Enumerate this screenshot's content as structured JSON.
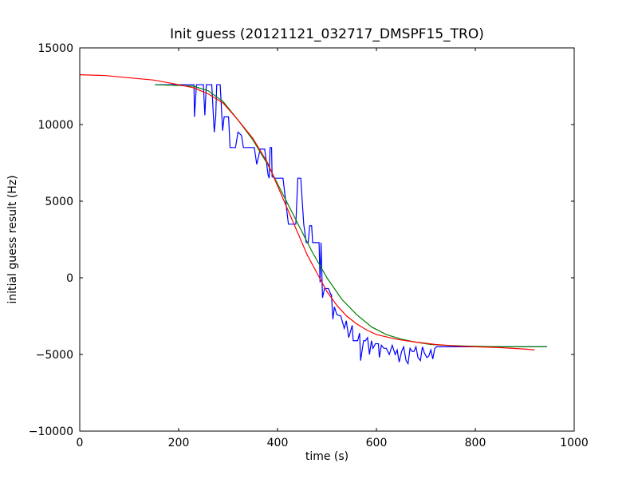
{
  "chart_data": {
    "type": "line",
    "title": "Init guess (20121121_032717_DMSPF15_TRO)",
    "xlabel": "time (s)",
    "ylabel": "initial guess result (Hz)",
    "xlim": [
      0,
      1000
    ],
    "ylim": [
      -10000,
      15000
    ],
    "xticks": [
      0,
      200,
      400,
      600,
      800,
      1000
    ],
    "yticks": [
      -10000,
      -5000,
      0,
      5000,
      10000,
      15000
    ],
    "xtick_labels": [
      "0",
      "200",
      "400",
      "600",
      "800",
      "1000"
    ],
    "ytick_labels": [
      "−10000",
      "−5000",
      "0",
      "5000",
      "10000",
      "15000"
    ],
    "grid": false,
    "series": [
      {
        "color": "#0000ff",
        "x": [
          152,
          175,
          198,
          222,
          231,
          232,
          236,
          239,
          247,
          250,
          253,
          256,
          258,
          262,
          267,
          272,
          275,
          277,
          281,
          284,
          289,
          292,
          294,
          297,
          301,
          304,
          312,
          315,
          320,
          327,
          331,
          334,
          337,
          343,
          353,
          358,
          365,
          374,
          381,
          383,
          385,
          388,
          389,
          395,
          405,
          408,
          411,
          422,
          434,
          437,
          441,
          447,
          453,
          458,
          462,
          465,
          469,
          471,
          475,
          480,
          484,
          486,
          488,
          491,
          495,
          503,
          508,
          509,
          512,
          515,
          520,
          528,
          535,
          539,
          544,
          551,
          553,
          562,
          566,
          568,
          574,
          578,
          582,
          586,
          590,
          593,
          598,
          604,
          606,
          610,
          615,
          620,
          626,
          632,
          638,
          642,
          646,
          651,
          655,
          660,
          664,
          668,
          672,
          676,
          680,
          684,
          689,
          693,
          697,
          702,
          706,
          710,
          714,
          718,
          722,
          730,
          760,
          800,
          850,
          900,
          945
        ],
        "y": [
          12600,
          12600,
          12600,
          12600,
          12600,
          10500,
          12600,
          12600,
          12600,
          12600,
          10600,
          12600,
          12600,
          12600,
          12600,
          9500,
          10500,
          12600,
          12600,
          12600,
          9600,
          10500,
          10500,
          10500,
          10500,
          8500,
          8500,
          8500,
          9500,
          9300,
          8500,
          8500,
          8500,
          8500,
          8500,
          7400,
          8400,
          8400,
          6700,
          6500,
          8500,
          8500,
          6600,
          6500,
          6500,
          6500,
          6500,
          3500,
          3500,
          3500,
          6500,
          6500,
          3500,
          2300,
          2300,
          3400,
          3400,
          2300,
          2300,
          2300,
          2300,
          -300,
          2300,
          -1300,
          -700,
          -700,
          -1100,
          -1100,
          -2700,
          -1900,
          -2400,
          -2500,
          -3300,
          -2800,
          -3900,
          -3100,
          -4100,
          -4100,
          -3600,
          -5400,
          -4100,
          -4100,
          -3900,
          -5000,
          -4100,
          -4600,
          -4300,
          -4300,
          -5200,
          -4400,
          -4600,
          -4600,
          -5000,
          -4400,
          -5000,
          -4700,
          -5500,
          -4800,
          -4500,
          -5400,
          -5600,
          -4600,
          -4800,
          -4800,
          -4500,
          -5200,
          -5400,
          -4500,
          -4900,
          -5200,
          -5100,
          -4700,
          -5300,
          -4600,
          -4500,
          -4500,
          -4500,
          -4500,
          -4500,
          -4500,
          -4500
        ]
      },
      {
        "color": "#008000",
        "x": [
          152,
          200,
          230,
          260,
          290,
          320,
          350,
          380,
          410,
          440,
          470,
          500,
          530,
          560,
          590,
          620,
          650,
          680,
          710,
          740,
          780,
          820,
          860,
          900,
          945
        ],
        "y": [
          12600,
          12550,
          12500,
          12200,
          11500,
          10300,
          9000,
          7400,
          5500,
          3600,
          1700,
          0,
          -1400,
          -2400,
          -3200,
          -3700,
          -4000,
          -4200,
          -4350,
          -4400,
          -4450,
          -4480,
          -4500,
          -4500,
          -4500
        ]
      },
      {
        "color": "#ff0000",
        "x": [
          0,
          50,
          100,
          150,
          200,
          230,
          260,
          290,
          320,
          350,
          380,
          400,
          420,
          440,
          460,
          480,
          500,
          520,
          540,
          560,
          580,
          600,
          640,
          680,
          720,
          760,
          800,
          850,
          900,
          920
        ],
        "y": [
          13250,
          13200,
          13050,
          12900,
          12600,
          12400,
          12000,
          11400,
          10300,
          9100,
          7500,
          6000,
          4500,
          3000,
          1500,
          300,
          -900,
          -1800,
          -2500,
          -3000,
          -3400,
          -3700,
          -4000,
          -4200,
          -4350,
          -4450,
          -4500,
          -4550,
          -4650,
          -4700
        ]
      }
    ]
  }
}
